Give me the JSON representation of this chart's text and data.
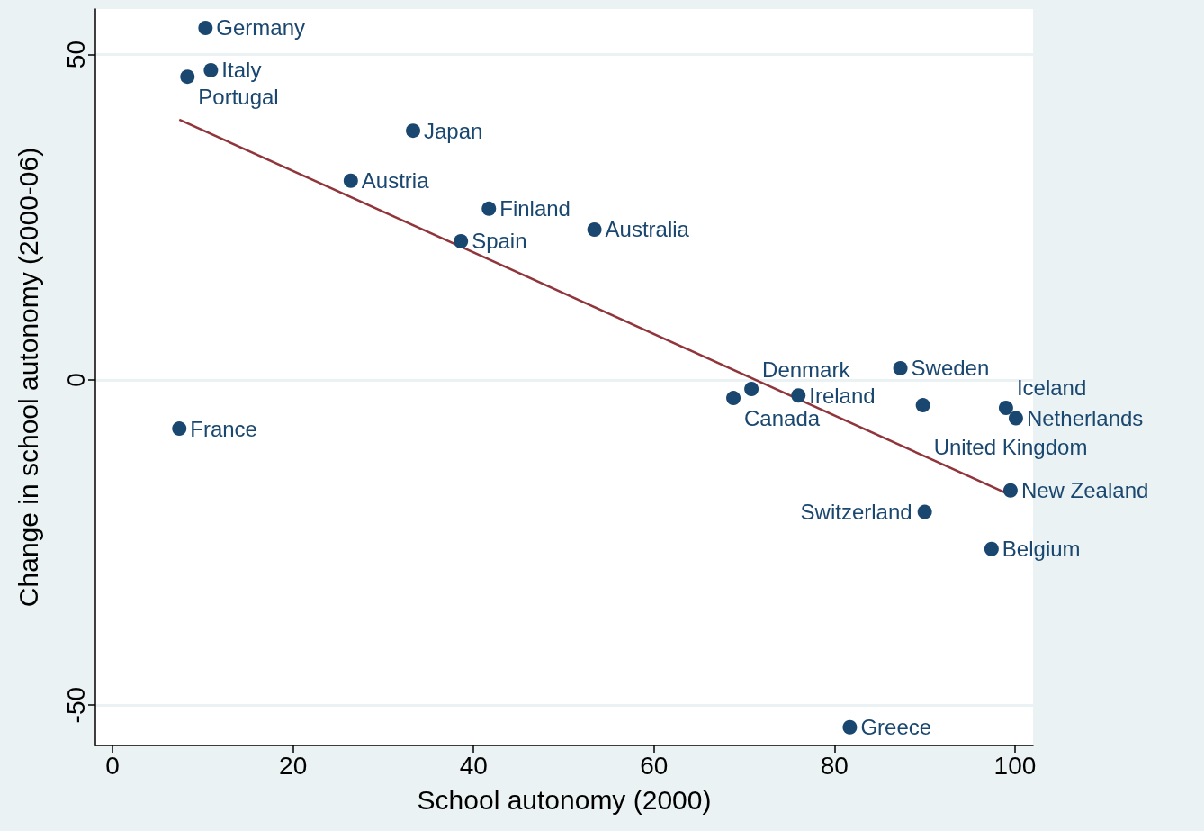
{
  "chart_data": {
    "type": "scatter",
    "xlabel": "School autonomy (2000)",
    "ylabel": "Change in school autonomy (2000-06)",
    "xlim": [
      -1.9,
      102
    ],
    "xticks": [
      0,
      20,
      40,
      60,
      80,
      100
    ],
    "ylim": [
      -56.2,
      57
    ],
    "yticks": [
      -50,
      0,
      50
    ],
    "grid": "y",
    "legend": false,
    "marker": "circle",
    "series": [
      {
        "color": "#1a476f",
        "x": [
          10.3,
          10.9,
          8.3,
          33.3,
          26.4,
          41.7,
          38.6,
          53.4,
          87.3,
          70.8,
          68.8,
          76.0,
          89.8,
          99.0,
          100.1,
          99.5,
          90.0,
          97.4,
          7.4,
          81.7
        ],
        "values": [
          54.1,
          47.6,
          46.6,
          38.3,
          30.6,
          26.3,
          21.3,
          23.1,
          1.8,
          -1.4,
          -2.8,
          -2.4,
          -3.9,
          -4.3,
          -5.9,
          -17.0,
          -20.3,
          -26.0,
          -7.5,
          -53.4
        ]
      },
      {
        "type": "line",
        "marker": "none",
        "color": "#90353b",
        "x": [
          7.4,
          99.5
        ],
        "values": [
          40.0,
          -17.7
        ]
      }
    ],
    "annotations": [
      {
        "text": "Germany",
        "x": 10.3,
        "y": 54.1
      },
      {
        "text": "Italy",
        "x": 10.9,
        "y": 47.6
      },
      {
        "text": "Portugal",
        "x": 8.3,
        "y": 46.6
      },
      {
        "text": "Japan",
        "x": 33.3,
        "y": 38.3
      },
      {
        "text": "Austria",
        "x": 26.4,
        "y": 30.6
      },
      {
        "text": "Finland",
        "x": 41.7,
        "y": 26.3
      },
      {
        "text": "Spain",
        "x": 38.6,
        "y": 21.3
      },
      {
        "text": "Australia",
        "x": 53.4,
        "y": 23.1
      },
      {
        "text": "Sweden",
        "x": 87.3,
        "y": 1.8
      },
      {
        "text": "Denmark",
        "x": 70.8,
        "y": -1.4
      },
      {
        "text": "Canada",
        "x": 68.8,
        "y": -2.8
      },
      {
        "text": "Ireland",
        "x": 76.0,
        "y": -2.4
      },
      {
        "text": "United Kingdom",
        "x": 89.8,
        "y": -3.9
      },
      {
        "text": "Iceland",
        "x": 99.0,
        "y": -4.3
      },
      {
        "text": "Netherlands",
        "x": 100.1,
        "y": -5.9
      },
      {
        "text": "New Zealand",
        "x": 99.5,
        "y": -17.0
      },
      {
        "text": "Switzerland",
        "x": 90.0,
        "y": -20.3
      },
      {
        "text": "Belgium",
        "x": 97.4,
        "y": -26.0
      },
      {
        "text": "France",
        "x": 7.4,
        "y": -7.5
      },
      {
        "text": "Greece",
        "x": 81.7,
        "y": -53.4
      }
    ]
  }
}
